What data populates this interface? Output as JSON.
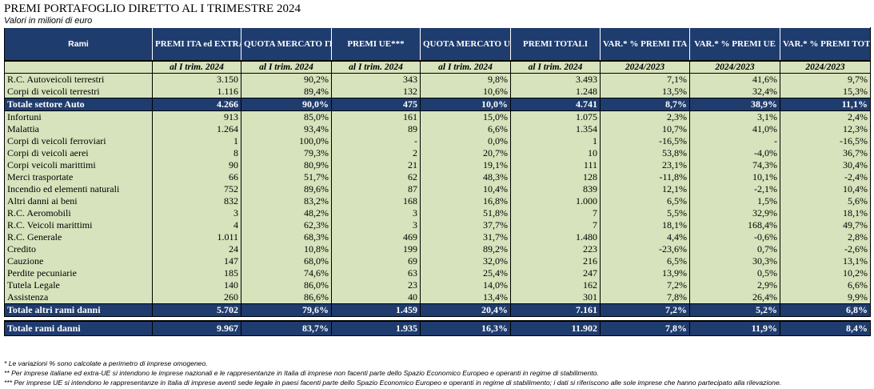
{
  "title": "PREMI PORTAFOGLIO DIRETTO AL I TRIMESTRE 2024",
  "subtitle": "Valori in milioni di euro",
  "headers": [
    "Rami",
    "PREMI ITA ed EXTRA UE**",
    "QUOTA MERCATO ITA ed EXTRA UE",
    "PREMI UE***",
    "QUOTA MERCATO UE",
    "PREMI TOTALI",
    "VAR.* % PREMI ITA ed EXTRA UE",
    "VAR.* % PREMI UE",
    "VAR.* % PREMI TOTALI"
  ],
  "subheaders": [
    "",
    "al I trim. 2024",
    "al I trim. 2024",
    "al I trim. 2024",
    "al I trim. 2024",
    "al I trim. 2024",
    "2024/2023",
    "2024/2023",
    "2024/2023"
  ],
  "auto_rows": [
    {
      "name": "R.C. Autoveicoli terrestri",
      "v": [
        "3.150",
        "90,2%",
        "343",
        "9,8%",
        "3.493",
        "7,1%",
        "41,6%",
        "9,7%"
      ]
    },
    {
      "name": "Corpi di veicoli terrestri",
      "v": [
        "1.116",
        "89,4%",
        "132",
        "10,6%",
        "1.248",
        "13,5%",
        "32,4%",
        "15,3%"
      ]
    }
  ],
  "total_auto": {
    "name": "Totale settore Auto",
    "v": [
      "4.266",
      "90,0%",
      "475",
      "10,0%",
      "4.741",
      "8,7%",
      "38,9%",
      "11,1%"
    ]
  },
  "other_rows": [
    {
      "name": "Infortuni",
      "v": [
        "913",
        "85,0%",
        "161",
        "15,0%",
        "1.075",
        "2,3%",
        "3,1%",
        "2,4%"
      ]
    },
    {
      "name": "Malattia",
      "v": [
        "1.264",
        "93,4%",
        "89",
        "6,6%",
        "1.354",
        "10,7%",
        "41,0%",
        "12,3%"
      ]
    },
    {
      "name": "Corpi di veicoli ferroviari",
      "v": [
        "1",
        "100,0%",
        "-",
        "0,0%",
        "1",
        "-16,5%",
        "-",
        "-16,5%"
      ]
    },
    {
      "name": "Corpi di veicoli aerei",
      "v": [
        "8",
        "79,3%",
        "2",
        "20,7%",
        "10",
        "53,8%",
        "-4,0%",
        "36,7%"
      ]
    },
    {
      "name": "Corpi veicoli marittimi",
      "v": [
        "90",
        "80,9%",
        "21",
        "19,1%",
        "111",
        "23,1%",
        "74,3%",
        "30,4%"
      ]
    },
    {
      "name": "Merci trasportate",
      "v": [
        "66",
        "51,7%",
        "62",
        "48,3%",
        "128",
        "-11,8%",
        "10,1%",
        "-2,4%"
      ]
    },
    {
      "name": "Incendio ed elementi naturali",
      "v": [
        "752",
        "89,6%",
        "87",
        "10,4%",
        "839",
        "12,1%",
        "-2,1%",
        "10,4%"
      ]
    },
    {
      "name": "Altri danni ai beni",
      "v": [
        "832",
        "83,2%",
        "168",
        "16,8%",
        "1.000",
        "6,5%",
        "1,5%",
        "5,6%"
      ]
    },
    {
      "name": "R.C. Aeromobili",
      "v": [
        "3",
        "48,2%",
        "3",
        "51,8%",
        "7",
        "5,5%",
        "32,9%",
        "18,1%"
      ]
    },
    {
      "name": "R.C. Veicoli marittimi",
      "v": [
        "4",
        "62,3%",
        "3",
        "37,7%",
        "7",
        "18,1%",
        "168,4%",
        "49,7%"
      ]
    },
    {
      "name": "R.C. Generale",
      "v": [
        "1.011",
        "68,3%",
        "469",
        "31,7%",
        "1.480",
        "4,4%",
        "-0,6%",
        "2,8%"
      ]
    },
    {
      "name": "Credito",
      "v": [
        "24",
        "10,8%",
        "199",
        "89,2%",
        "223",
        "-23,6%",
        "0,7%",
        "-2,6%"
      ]
    },
    {
      "name": "Cauzione",
      "v": [
        "147",
        "68,0%",
        "69",
        "32,0%",
        "216",
        "6,5%",
        "30,3%",
        "13,1%"
      ]
    },
    {
      "name": "Perdite pecuniarie",
      "v": [
        "185",
        "74,6%",
        "63",
        "25,4%",
        "247",
        "13,9%",
        "0,5%",
        "10,2%"
      ]
    },
    {
      "name": "Tutela Legale",
      "v": [
        "140",
        "86,0%",
        "23",
        "14,0%",
        "162",
        "7,2%",
        "2,9%",
        "6,6%"
      ]
    },
    {
      "name": "Assistenza",
      "v": [
        "260",
        "86,6%",
        "40",
        "13,4%",
        "301",
        "7,8%",
        "26,4%",
        "9,9%"
      ]
    }
  ],
  "total_other": {
    "name": "Totale altri rami danni",
    "v": [
      "5.702",
      "79,6%",
      "1.459",
      "20,4%",
      "7.161",
      "7,2%",
      "5,2%",
      "6,8%"
    ]
  },
  "total_all": {
    "name": "Totale rami danni",
    "v": [
      "9.967",
      "83,7%",
      "1.935",
      "16,3%",
      "11.902",
      "7,8%",
      "11,9%",
      "8,4%"
    ]
  },
  "notes": [
    "* Le variazioni % sono calcolate a perimetro di imprese omogeneo.",
    "** Per imprese italiane ed extra-UE si intendono le imprese nazionali e le rappresentanze in Italia di imprese non facenti parte dello Spazio Economico Europeo e operanti in regime di stabilimento.",
    "*** Per imprese UE si intendono le rappresentanze in Italia di imprese aventi sede legale in paesi facenti parte dello Spazio Economico Europeo e operanti in regime di stabilimento; i dati si riferiscono alle sole imprese che hanno partecipato alla rilevazione."
  ]
}
